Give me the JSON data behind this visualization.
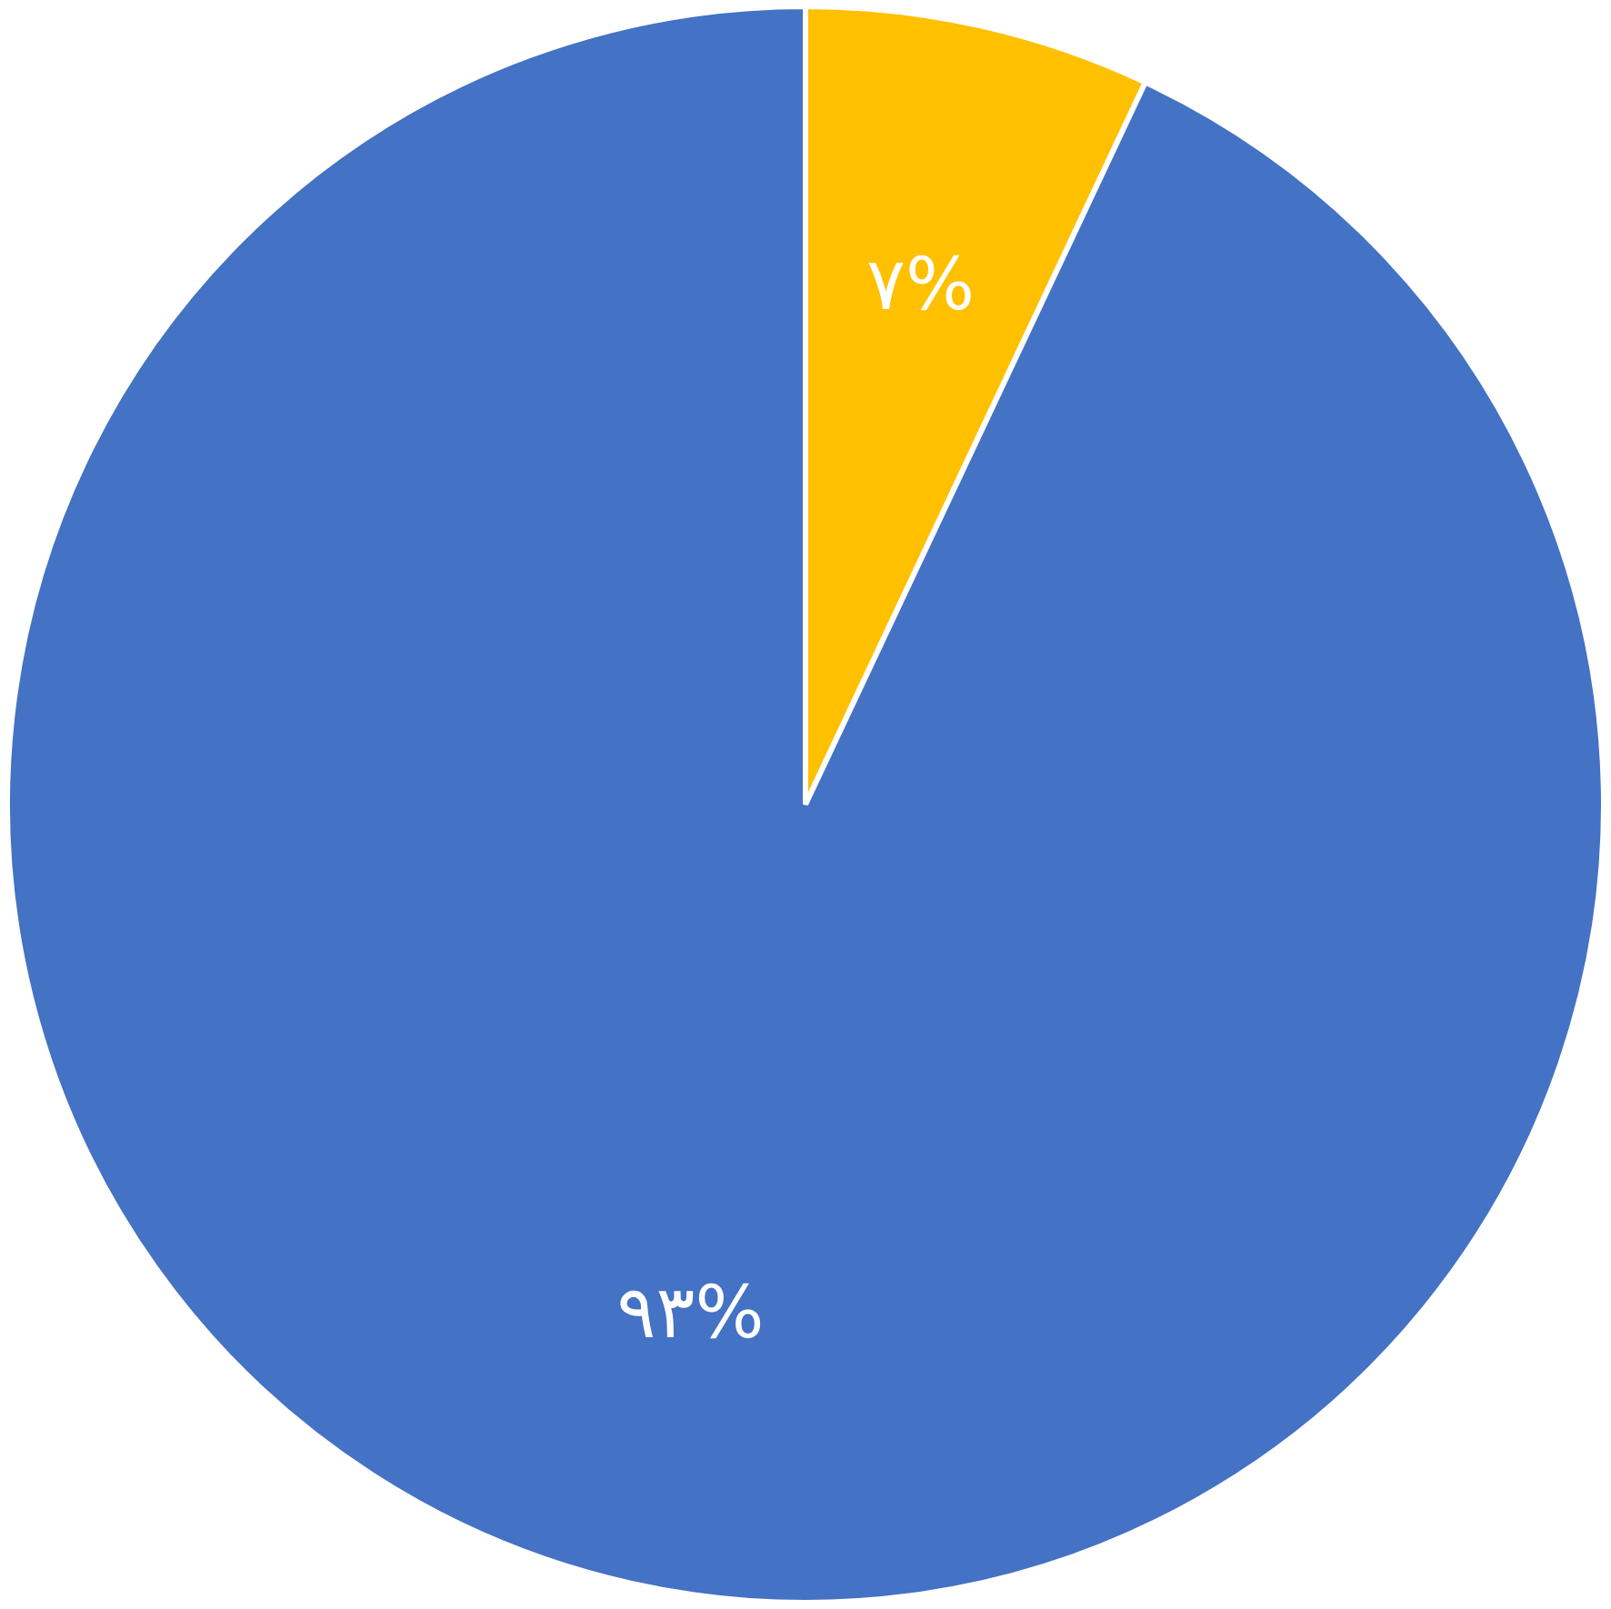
{
  "chart_data": {
    "type": "pie",
    "categories": [
      null,
      null
    ],
    "values": [
      7,
      93
    ],
    "colors": [
      "#ffc000",
      "#4472c4"
    ],
    "value_labels": [
      "۷%",
      "۹۳%"
    ],
    "legend": false
  }
}
